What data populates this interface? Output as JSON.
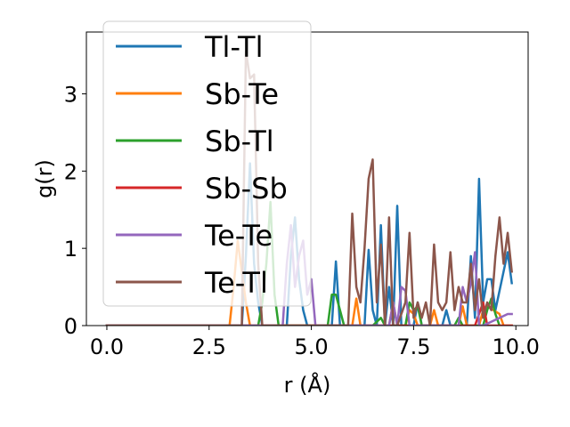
{
  "chart_data": {
    "type": "line",
    "xlabel": "r (Å)",
    "ylabel": "g(r)",
    "xlim": [
      -0.5,
      10.3
    ],
    "ylim": [
      0,
      3.8
    ],
    "xticks": [
      0.0,
      2.5,
      5.0,
      7.5,
      10.0
    ],
    "xtick_labels": [
      "0.0",
      "2.5",
      "5.0",
      "7.5",
      "10.0"
    ],
    "yticks": [
      0,
      1,
      2,
      3
    ],
    "ytick_labels": [
      "0",
      "1",
      "2",
      "3"
    ],
    "grid": false,
    "legend_position": "top-left",
    "series": [
      {
        "name": "Tl-Tl",
        "color": "#1f77b4",
        "x": [
          0.0,
          3.3,
          3.4,
          3.5,
          3.6,
          3.7,
          3.8,
          4.4,
          4.5,
          4.6,
          4.7,
          4.8,
          4.9,
          5.0,
          5.5,
          5.6,
          5.7,
          6.3,
          6.4,
          6.5,
          6.6,
          6.7,
          6.8,
          6.9,
          7.0,
          7.1,
          7.2,
          7.5,
          7.6,
          7.7,
          8.2,
          8.3,
          8.4,
          8.8,
          8.9,
          9.0,
          9.1,
          9.2,
          9.3,
          9.4,
          9.5,
          9.8,
          9.9
        ],
        "y": [
          0,
          0,
          0.9,
          2.1,
          0.8,
          0.3,
          0,
          0,
          0.9,
          1.4,
          0.6,
          0.2,
          0,
          0,
          0,
          0.83,
          0,
          0,
          0.98,
          0.2,
          0,
          1.3,
          0,
          0.5,
          0,
          1.55,
          0,
          0,
          0.3,
          0,
          0,
          0.2,
          0,
          0,
          0.9,
          0.1,
          1.9,
          0.3,
          0.6,
          0.6,
          0.2,
          0.95,
          0.55
        ]
      },
      {
        "name": "Sb-Te",
        "color": "#ff7f0e",
        "x": [
          0.0,
          3.0,
          3.1,
          3.2,
          3.3,
          3.4,
          3.5,
          6.0,
          6.1,
          6.2,
          6.9,
          7.0,
          7.1,
          7.3,
          7.4,
          7.5,
          7.6,
          7.9,
          8.0,
          8.1,
          8.6,
          8.7,
          8.8,
          9.1,
          9.2,
          9.3,
          9.6,
          9.7,
          9.9
        ],
        "y": [
          0,
          0,
          0.5,
          1.1,
          0.7,
          0.3,
          0,
          0,
          0.35,
          0,
          0,
          0.3,
          0,
          0,
          0.2,
          0.15,
          0,
          0,
          0.2,
          0,
          0,
          0.25,
          0,
          0,
          0.2,
          0.25,
          0.15,
          0,
          0
        ]
      },
      {
        "name": "Sb-Tl",
        "color": "#2ca02c",
        "x": [
          0.0,
          3.7,
          3.8,
          3.9,
          4.0,
          4.1,
          4.2,
          5.4,
          5.5,
          5.6,
          5.7,
          5.8,
          6.5,
          6.6,
          6.7,
          6.8,
          7.3,
          7.4,
          7.5,
          7.6,
          7.7,
          8.5,
          8.6,
          8.7,
          9.2,
          9.3,
          9.4,
          9.5,
          9.6
        ],
        "y": [
          0,
          0,
          0.3,
          0.8,
          1.6,
          0.4,
          0,
          0,
          0.4,
          0.4,
          0.2,
          0,
          0,
          0.05,
          0.1,
          0,
          0,
          0.3,
          0.2,
          0.25,
          0,
          0,
          0.1,
          0,
          0,
          0.2,
          0.35,
          0.15,
          0
        ]
      },
      {
        "name": "Sb-Sb",
        "color": "#d62728",
        "x": [
          0.0,
          9.0,
          9.1,
          9.2,
          9.3,
          9.9
        ],
        "y": [
          0,
          0,
          0.15,
          0.3,
          0,
          0
        ]
      },
      {
        "name": "Te-Te",
        "color": "#9467bd",
        "x": [
          0.0,
          4.3,
          4.4,
          4.5,
          4.6,
          4.7,
          4.8,
          4.9,
          5.0,
          5.1,
          6.9,
          7.0,
          7.1,
          7.2,
          7.3,
          7.4,
          7.5,
          8.6,
          8.7,
          8.8,
          8.9,
          9.0,
          9.1,
          9.2,
          9.8,
          9.9
        ],
        "y": [
          0,
          0,
          0.8,
          1.3,
          0.5,
          0.9,
          1.1,
          0.4,
          0.6,
          0,
          0,
          0.3,
          0,
          0.5,
          0.45,
          0,
          0,
          0,
          0.5,
          0.3,
          0.55,
          0.95,
          0,
          0,
          0.15,
          0.15
        ]
      },
      {
        "name": "Te-Tl",
        "color": "#8c564b",
        "x": [
          0.0,
          3.3,
          3.4,
          3.5,
          3.6,
          3.7,
          3.8,
          5.9,
          6.0,
          6.1,
          6.2,
          6.3,
          6.4,
          6.5,
          6.6,
          6.7,
          6.8,
          6.9,
          7.0,
          7.1,
          7.2,
          7.3,
          7.4,
          7.5,
          7.6,
          7.7,
          7.8,
          7.9,
          8.0,
          8.1,
          8.2,
          8.3,
          8.4,
          8.5,
          8.6,
          8.7,
          8.8,
          8.9,
          9.0,
          9.1,
          9.2,
          9.3,
          9.4,
          9.5,
          9.6,
          9.7,
          9.8,
          9.9
        ],
        "y": [
          0,
          0,
          3.55,
          3.2,
          3.25,
          0.8,
          0,
          0,
          1.45,
          0.5,
          0.3,
          1.0,
          1.9,
          2.15,
          0.3,
          1.05,
          0,
          1.4,
          0,
          0,
          0.15,
          0.3,
          1.2,
          0.1,
          0.3,
          0.1,
          0.3,
          0,
          1.05,
          0.3,
          0.2,
          0.3,
          0.95,
          0.2,
          0.5,
          0.3,
          0.3,
          0.8,
          0.2,
          0.6,
          0.1,
          0.3,
          0.2,
          0.9,
          1.4,
          0.8,
          1.2,
          0.7
        ]
      }
    ]
  }
}
